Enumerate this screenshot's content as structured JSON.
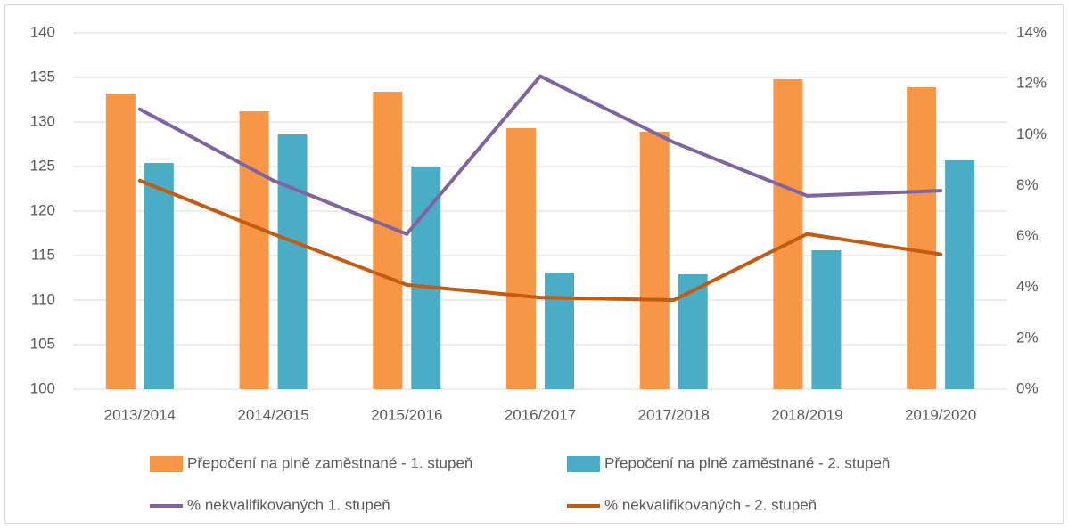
{
  "chart_data": {
    "type": "bar",
    "categories": [
      "2013/2014",
      "2014/2015",
      "2015/2016",
      "2016/2017",
      "2017/2018",
      "2018/2019",
      "2019/2020"
    ],
    "series": [
      {
        "name": "Přepočení na plně zaměstnané - 1. stupeň",
        "type": "bar",
        "color": "#f79646",
        "values": [
          133.2,
          131.2,
          133.4,
          129.3,
          128.9,
          134.8,
          133.9
        ]
      },
      {
        "name": "Přepočení na plně zaměstnané - 2. stupeň",
        "type": "bar",
        "color": "#4bacc6",
        "values": [
          125.4,
          128.6,
          125.0,
          113.1,
          112.9,
          115.6,
          125.7
        ]
      },
      {
        "name": "% nekvalifikovaných 1. stupeň",
        "type": "line",
        "axis": "y2",
        "color": "#8064a2",
        "values": [
          11.0,
          8.2,
          6.1,
          12.3,
          9.7,
          7.6,
          7.8
        ]
      },
      {
        "name": "% nekvalifikovaných - 2. stupeň",
        "type": "line",
        "axis": "y2",
        "color": "#c55a11",
        "values": [
          8.2,
          6.1,
          4.1,
          3.6,
          3.5,
          6.1,
          5.3
        ]
      }
    ],
    "ylim": [
      100,
      140
    ],
    "yticks": [
      100,
      105,
      110,
      115,
      120,
      125,
      130,
      135,
      140
    ],
    "y2lim": [
      0,
      14
    ],
    "y2ticks": [
      {
        "value": 0,
        "label": "0%"
      },
      {
        "value": 2,
        "label": "2%"
      },
      {
        "value": 4,
        "label": "4%"
      },
      {
        "value": 6,
        "label": "6%"
      },
      {
        "value": 8,
        "label": "8%"
      },
      {
        "value": 10,
        "label": "10%"
      },
      {
        "value": 12,
        "label": "12%"
      },
      {
        "value": 14,
        "label": "14%"
      }
    ],
    "grid": true,
    "legend": "bottom"
  }
}
